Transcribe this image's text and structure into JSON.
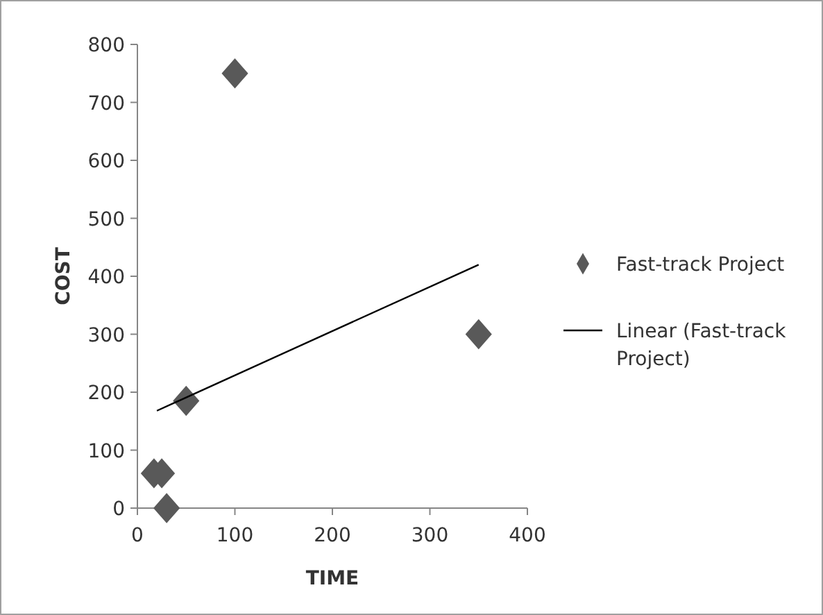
{
  "chart_data": {
    "type": "scatter",
    "xlabel": "TIME",
    "ylabel": "COST",
    "xlim": [
      0,
      400
    ],
    "ylim": [
      0,
      800
    ],
    "xticks": [
      0,
      100,
      200,
      300,
      400
    ],
    "yticks": [
      0,
      100,
      200,
      300,
      400,
      500,
      600,
      700,
      800
    ],
    "grid": false,
    "legend": "right",
    "marker": "diamond",
    "series": [
      {
        "name": "Fast-track Project",
        "color": "#595959",
        "x": [
          17,
          25,
          30,
          50,
          100,
          350
        ],
        "values": [
          60,
          60,
          0,
          185,
          750,
          300
        ]
      },
      {
        "name": "Linear (Fast-track Project)",
        "type": "line",
        "color": "#000000",
        "marker": "none",
        "line_style": "solid",
        "x": [
          20,
          350
        ],
        "values": [
          168,
          420
        ]
      }
    ]
  }
}
